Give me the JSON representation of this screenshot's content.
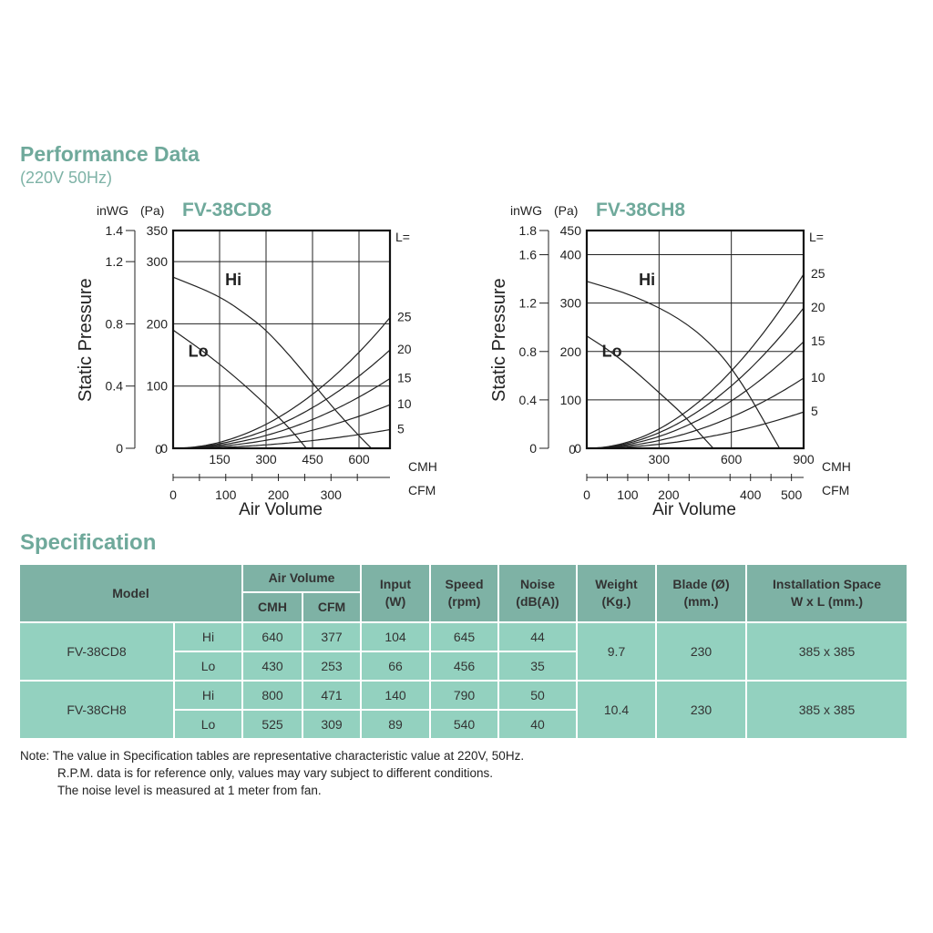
{
  "header": {
    "title": "Performance Data",
    "subtitle": "(220V 50Hz)"
  },
  "chart_data": [
    {
      "type": "line",
      "title": "FV-38CD8",
      "ylabel": "Static Pressure",
      "y_units": [
        "inWG",
        "(Pa)"
      ],
      "y_pa_ticks": [
        "0",
        "100",
        "200",
        "300",
        "350"
      ],
      "y_inwg_ticks": [
        "0",
        "0.4",
        "0.8",
        "1.2",
        "1.4"
      ],
      "xlabel": "Air Volume",
      "x_cmh_unit": "CMH",
      "x_cfm_unit": "CFM",
      "x_cmh_ticks": [
        "0",
        "150",
        "300",
        "450",
        "600"
      ],
      "x_cfm_ticks": [
        "0",
        "100",
        "200",
        "300"
      ],
      "xlim_cmh": [
        0,
        700
      ],
      "ylim_pa": [
        0,
        350
      ],
      "grid": true,
      "duct_label": "L=",
      "duct_curves": [
        {
          "label": "25",
          "k": 0.0004286
        },
        {
          "label": "20",
          "k": 0.0003224
        },
        {
          "label": "15",
          "k": 0.0002286
        },
        {
          "label": "10",
          "k": 0.0001429
        },
        {
          "label": "5",
          "k": 6.12e-05
        }
      ],
      "series": [
        {
          "name": "Hi",
          "x": [
            0,
            150,
            250,
            300,
            375,
            450,
            525,
            600,
            640
          ],
          "y": [
            275,
            245,
            210,
            190,
            150,
            105,
            60,
            20,
            0
          ]
        },
        {
          "name": "Lo",
          "x": [
            0,
            100,
            200,
            300,
            380,
            430
          ],
          "y": [
            190,
            155,
            115,
            70,
            30,
            0
          ]
        }
      ]
    },
    {
      "type": "line",
      "title": "FV-38CH8",
      "ylabel": "Static Pressure",
      "y_units": [
        "inWG",
        "(Pa)"
      ],
      "y_pa_ticks": [
        "0",
        "100",
        "200",
        "300",
        "400",
        "450"
      ],
      "y_inwg_ticks": [
        "0",
        "0.4",
        "0.8",
        "1.2",
        "1.6",
        "1.8"
      ],
      "xlabel": "Air Volume",
      "x_cmh_unit": "CMH",
      "x_cfm_unit": "CFM",
      "x_cmh_ticks": [
        "300",
        "600",
        "900"
      ],
      "x_cfm_ticks": [
        "0",
        "100",
        "200",
        "400",
        "500"
      ],
      "xlim_cmh": [
        0,
        900
      ],
      "ylim_pa": [
        0,
        450
      ],
      "grid": true,
      "duct_label": "L=",
      "duct_curves": [
        {
          "label": "25",
          "k": 0.000444
        },
        {
          "label": "20",
          "k": 0.000358
        },
        {
          "label": "15",
          "k": 0.000272
        },
        {
          "label": "10",
          "k": 0.000179
        },
        {
          "label": "5",
          "k": 9.26e-05
        }
      ],
      "series": [
        {
          "name": "Hi",
          "x": [
            0,
            200,
            400,
            550,
            650,
            720,
            800
          ],
          "y": [
            345,
            315,
            265,
            200,
            130,
            70,
            0
          ]
        },
        {
          "name": "Lo",
          "x": [
            0,
            100,
            200,
            300,
            400,
            460,
            525
          ],
          "y": [
            232,
            200,
            160,
            115,
            70,
            35,
            0
          ]
        }
      ]
    }
  ],
  "spec": {
    "title": "Specification",
    "headers": {
      "model": "Model",
      "air_volume": "Air Volume",
      "cmh": "CMH",
      "cfm": "CFM",
      "input": "Input\n(W)",
      "speed": "Speed\n(rpm)",
      "noise": "Noise\n(dB(A))",
      "weight": "Weight\n(Kg.)",
      "blade": "Blade (Ø)\n(mm.)",
      "space": "Installation Space\nW x L (mm.)"
    },
    "models": [
      {
        "name": "FV-38CD8",
        "weight": "9.7",
        "blade": "230",
        "space": "385 x 385",
        "rows": [
          {
            "speed_label": "Hi",
            "cmh": "640",
            "cfm": "377",
            "input": "104",
            "rpm": "645",
            "noise": "44"
          },
          {
            "speed_label": "Lo",
            "cmh": "430",
            "cfm": "253",
            "input": "66",
            "rpm": "456",
            "noise": "35"
          }
        ]
      },
      {
        "name": "FV-38CH8",
        "weight": "10.4",
        "blade": "230",
        "space": "385 x 385",
        "rows": [
          {
            "speed_label": "Hi",
            "cmh": "800",
            "cfm": "471",
            "input": "140",
            "rpm": "790",
            "noise": "50"
          },
          {
            "speed_label": "Lo",
            "cmh": "525",
            "cfm": "309",
            "input": "89",
            "rpm": "540",
            "noise": "40"
          }
        ]
      }
    ]
  },
  "notes": [
    "Note: The value in Specification tables are representative characteristic value at 220V, 50Hz.",
    "R.P.M. data is for reference only, values may vary subject to different conditions.",
    "The noise level is measured at 1 meter from fan."
  ],
  "colors": {
    "title": "#6fa99b",
    "table_header": "#7eb2a5",
    "table_cell": "#93d1bf"
  }
}
